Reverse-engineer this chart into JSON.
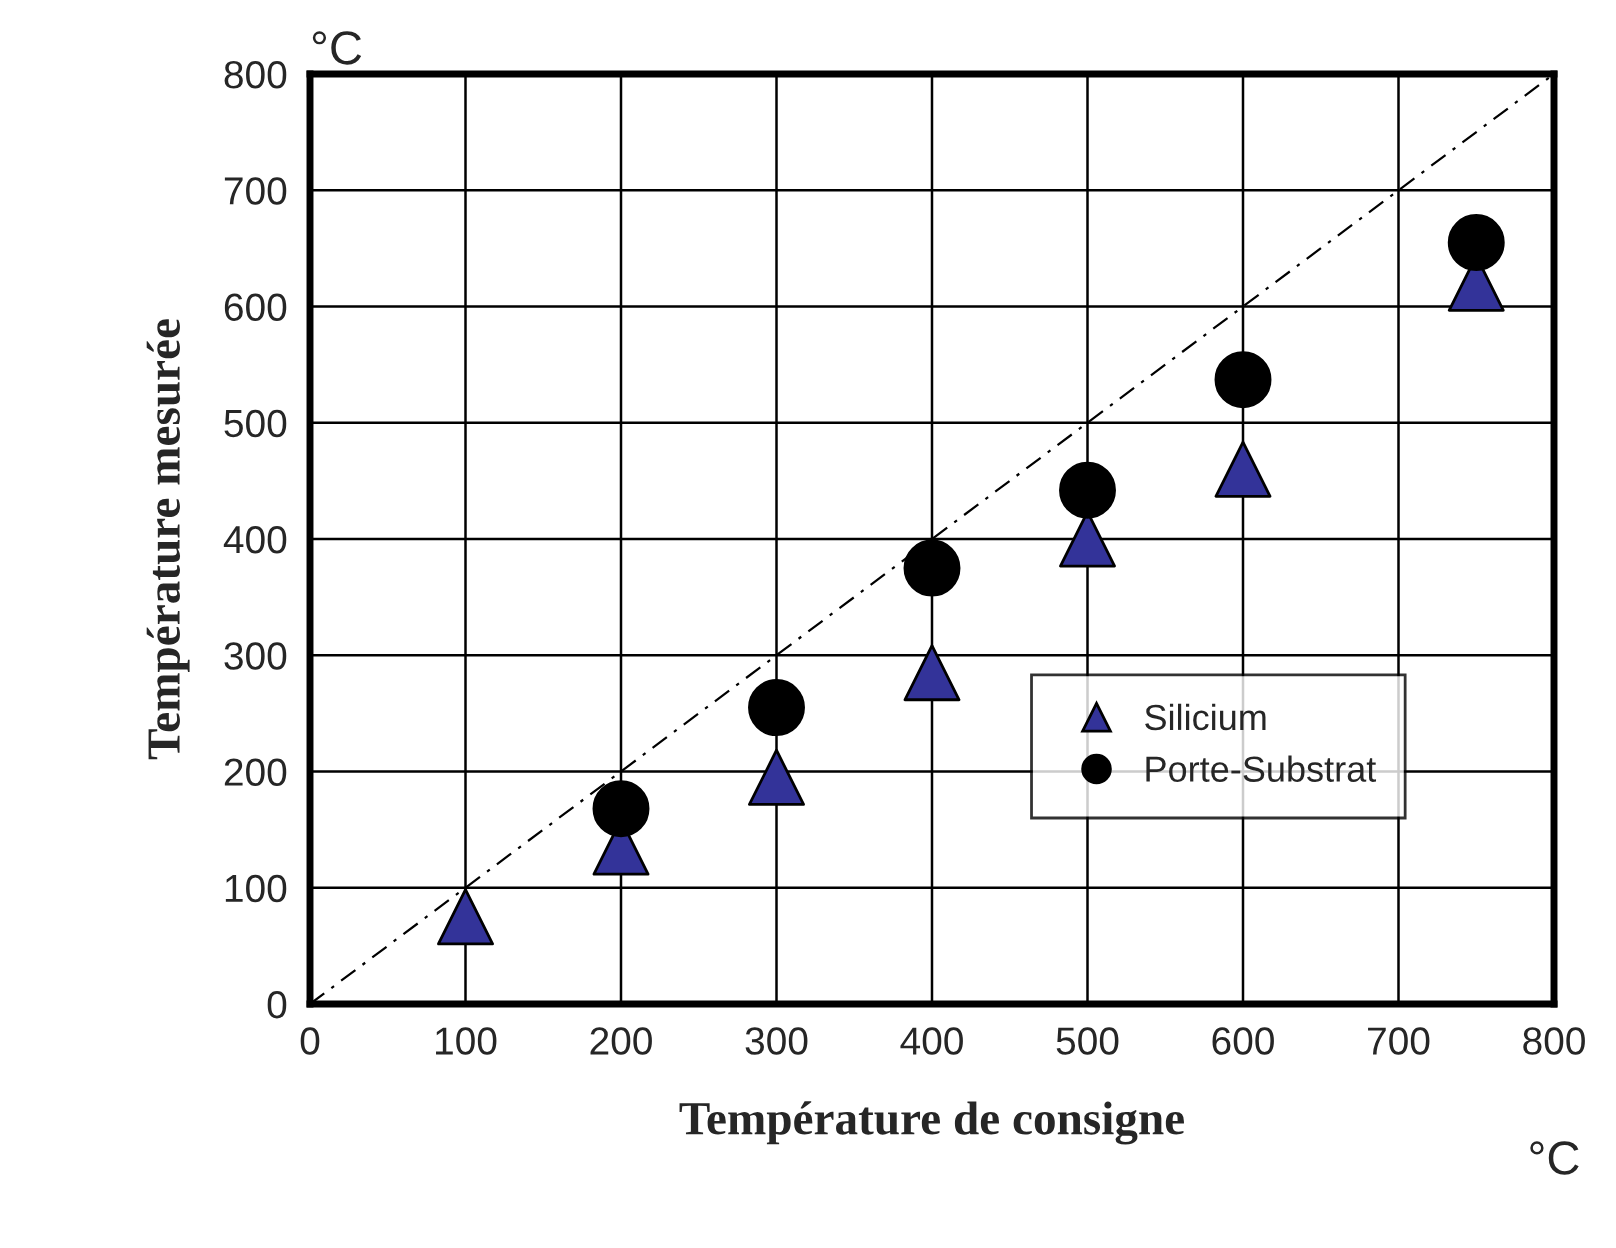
{
  "chart_data": {
    "type": "scatter",
    "xlabel": "Température de consigne",
    "ylabel": "Température mesurée",
    "annotations": [
      "°C",
      "°C"
    ],
    "xlim": [
      0,
      800
    ],
    "ylim": [
      0,
      800
    ],
    "xticks": [
      0,
      100,
      200,
      300,
      400,
      500,
      600,
      700,
      800
    ],
    "yticks": [
      0,
      100,
      200,
      300,
      400,
      500,
      600,
      700,
      800
    ],
    "grid": true,
    "legend": "right",
    "series": [
      {
        "name": "Silicium",
        "color": "#333399",
        "marker": "triangle",
        "x": [
          100,
          200,
          300,
          400,
          500,
          600,
          750
        ],
        "values": [
          75,
          135,
          195,
          285,
          400,
          460,
          620
        ]
      },
      {
        "name": "Porte-Substrat",
        "color": "#000000",
        "marker": "circle",
        "x": [
          200,
          300,
          400,
          500,
          600,
          750
        ],
        "values": [
          168,
          255,
          375,
          442,
          537,
          655
        ]
      },
      {
        "type": "line",
        "color": "#000000",
        "line_style": "dashed",
        "marker": "none",
        "x": [
          0,
          800
        ],
        "values": [
          0,
          800
        ]
      }
    ]
  }
}
